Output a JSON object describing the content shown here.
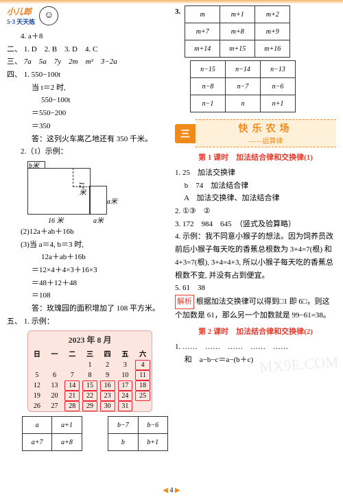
{
  "brand": {
    "part1": "小儿郎",
    "part2": "",
    "sub": "5·3 天天练"
  },
  "left": {
    "l4": "4.  a＋8",
    "sec2_label": "二、",
    "sec2_items": "1. D　2. B　3. D　4. C",
    "sec3_label": "三、",
    "sec3_items": "7a　5a　7y　2m　m²　3−2a",
    "sec4_label": "四、",
    "sec4_1": "1. 550−100t",
    "sec4_1a": "当 t＝2 时,",
    "sec4_1b": "550−100t",
    "sec4_1c": "＝550−200",
    "sec4_1d": "＝350",
    "sec4_1ans": "答：这列火车离乙地还有 350 千米。",
    "sec4_2": "2.（1）示例：",
    "diag": {
      "b": "b米",
      "s12": "12米",
      "s16": "16 米",
      "a1": "a米",
      "a2": "a米"
    },
    "sec4_2b": "(2)12a＋ab＋16b",
    "sec4_2c": "(3)当 a＝4, b＝3 时,",
    "sec4_2d": "12a＋ab＋16b",
    "sec4_2e": "＝12×4＋4×3＋16×3",
    "sec4_2f": "＝48＋12＋48",
    "sec4_2g": "＝108",
    "sec4_2ans": "答：玫瑰园的面积增加了 108 平方米。",
    "sec5_label": "五、",
    "sec5_1": "1. 示例：",
    "calendar": {
      "title": "2023 年 8 月",
      "week": [
        "日",
        "一",
        "二",
        "三",
        "四",
        "五",
        "六"
      ],
      "days": [
        [
          "",
          "",
          "",
          "1",
          "2",
          "3",
          "4"
        ],
        [
          "5",
          "6",
          "7",
          "8",
          "9",
          "10",
          "11"
        ],
        [
          "12",
          "13",
          "14",
          "15",
          "16",
          "17",
          "18"
        ],
        [
          "19",
          "20",
          "21",
          "22",
          "23",
          "24",
          "25"
        ],
        [
          "26",
          "27",
          "28",
          "29",
          "30",
          "31",
          ""
        ]
      ],
      "marked": [
        "4",
        "11",
        "14",
        "15",
        "16",
        "17",
        "18",
        "21",
        "22",
        "23",
        "24",
        "25",
        "28",
        "29",
        "30",
        "31"
      ]
    },
    "table_ab": {
      "rows": [
        [
          "a",
          "a+1",
          "",
          "b−7",
          "b−6"
        ],
        [
          "a+7",
          "a+8",
          "",
          "b",
          "b+1"
        ]
      ]
    }
  },
  "right": {
    "q3_label": "3.",
    "table_m": [
      [
        "m",
        "m+1",
        "m+2"
      ],
      [
        "m+7",
        "m+8",
        "m+9"
      ],
      [
        "m+14",
        "m+15",
        "m+16"
      ]
    ],
    "table_n": [
      [
        "n−15",
        "n−14",
        "n−13"
      ],
      [
        "n−8",
        "n−7",
        "n−6"
      ],
      [
        "n−1",
        "n",
        "n+1"
      ]
    ],
    "section": {
      "tab": "三",
      "title": "快乐农场",
      "sub": "——运算律"
    },
    "lesson1": "第 1 课时　加法结合律和交换律(1)",
    "lesson1_lines": [
      "1. 25　加法交换律",
      "　 b　74　加法结合律",
      "　 A　加法交换律、加法结合律",
      "2. ①③　②",
      "3. 172　984　645　（竖式及验算略）",
      "4. 示例：我不同意小猴子的想法。因为饲养员改前后小猴子每天吃的香蕉总根数为 3+4=7(根) 和 4+3=7(根), 3+4=4+3, 所以小猴子每天吃的香蕉总根数不变, 并没有占到便宜。",
      "5. 61　38"
    ],
    "analysis_label": "解析",
    "analysis_text": "根据加法交换律可以得到□1 即 6□，则这个加数是 61，那么另一个加数就是 99−61=38。",
    "lesson2": "第 2 课时　加法结合律和交换律(2)",
    "lesson2_lines": [
      "1. ……　……　……　……　……",
      "　 和　a−b−c＝a−(b＋c)"
    ]
  },
  "page_number": "4",
  "watermark": "MX9E.COM"
}
